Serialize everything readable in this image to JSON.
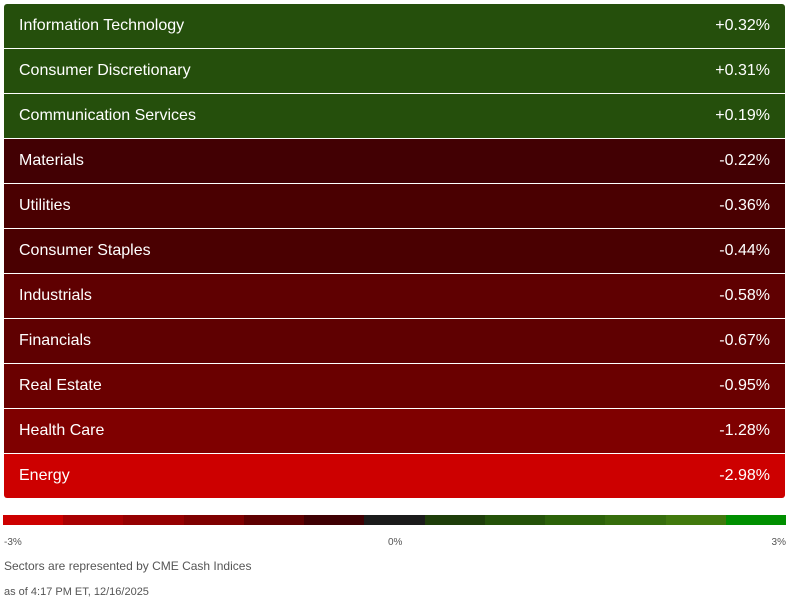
{
  "sectors": [
    {
      "name": "Information Technology",
      "change": "+0.32%",
      "color": "#254f0c"
    },
    {
      "name": "Consumer Discretionary",
      "change": "+0.31%",
      "color": "#254f0c"
    },
    {
      "name": "Communication Services",
      "change": "+0.19%",
      "color": "#254f0c"
    },
    {
      "name": "Materials",
      "change": "-0.22%",
      "color": "#420003"
    },
    {
      "name": "Utilities",
      "change": "-0.36%",
      "color": "#4a0001"
    },
    {
      "name": "Consumer Staples",
      "change": "-0.44%",
      "color": "#4a0001"
    },
    {
      "name": "Industrials",
      "change": "-0.58%",
      "color": "#5f0001"
    },
    {
      "name": "Financials",
      "change": "-0.67%",
      "color": "#5f0001"
    },
    {
      "name": "Real Estate",
      "change": "-0.95%",
      "color": "#6a0000"
    },
    {
      "name": "Health Care",
      "change": "-1.28%",
      "color": "#7f0000"
    },
    {
      "name": "Energy",
      "change": "-2.98%",
      "color": "#cd0000"
    }
  ],
  "legend": {
    "min_label": "-3%",
    "mid_label": "0%",
    "max_label": "3%",
    "colors": [
      "#cd0000",
      "#a90002",
      "#950001",
      "#7f0000",
      "#5f0001",
      "#3f0003",
      "#1b1b1b",
      "#1e3d0a",
      "#245209",
      "#2c6209",
      "#366d0c",
      "#41790d",
      "#008f00"
    ]
  },
  "note": "Sectors are represented by CME Cash Indices",
  "timestamp": "as of 4:17 PM ET, 12/16/2025"
}
